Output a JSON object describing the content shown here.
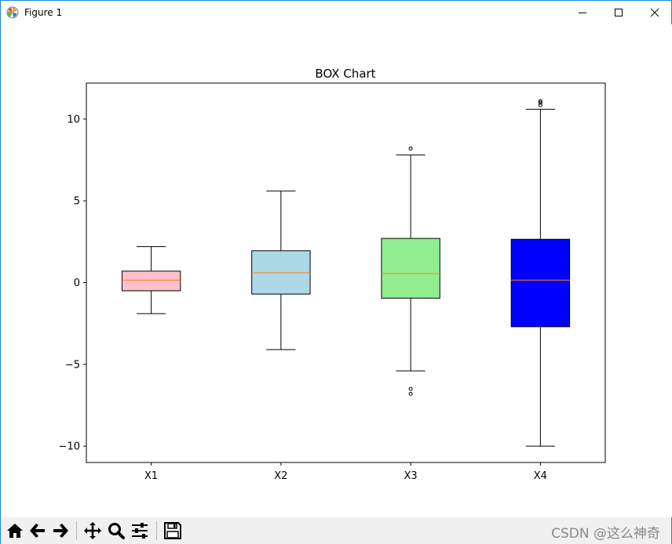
{
  "window": {
    "title": "Figure 1"
  },
  "toolbar": {
    "buttons": [
      {
        "name": "home-icon"
      },
      {
        "name": "back-arrow-icon"
      },
      {
        "name": "forward-arrow-icon"
      },
      {
        "name": "pan-icon"
      },
      {
        "name": "zoom-icon"
      },
      {
        "name": "configure-subplots-icon"
      },
      {
        "name": "save-icon"
      }
    ]
  },
  "watermark": "CSDN @这么神奇",
  "chart_data": {
    "type": "box",
    "title": "BOX Chart",
    "categories": [
      "X1",
      "X2",
      "X3",
      "X4"
    ],
    "ylim": [
      -11.0,
      12.2
    ],
    "yticks": [
      10,
      5,
      0,
      -5,
      -10
    ],
    "ytick_labels": [
      "10",
      "5",
      "0",
      "−5",
      "−10"
    ],
    "grid": false,
    "boxes": [
      {
        "label": "X1",
        "whisker_low": -1.9,
        "q1": -0.5,
        "median": 0.15,
        "q3": 0.7,
        "whisker_high": 2.2,
        "outliers": [],
        "color": "#ffc0cb"
      },
      {
        "label": "X2",
        "whisker_low": -4.1,
        "q1": -0.7,
        "median": 0.6,
        "q3": 1.95,
        "whisker_high": 5.6,
        "outliers": [],
        "color": "#add8e6"
      },
      {
        "label": "X3",
        "whisker_low": -5.4,
        "q1": -0.95,
        "median": 0.55,
        "q3": 2.7,
        "whisker_high": 7.8,
        "outliers": [
          -6.5,
          -6.8,
          8.2
        ],
        "color": "#90ee90"
      },
      {
        "label": "X4",
        "whisker_low": -10.0,
        "q1": -2.7,
        "median": 0.15,
        "q3": 2.65,
        "whisker_high": 10.6,
        "outliers": [
          10.85,
          11.0,
          11.1
        ],
        "color": "#0000ff"
      }
    ],
    "median_color": "#ff7f0e"
  }
}
